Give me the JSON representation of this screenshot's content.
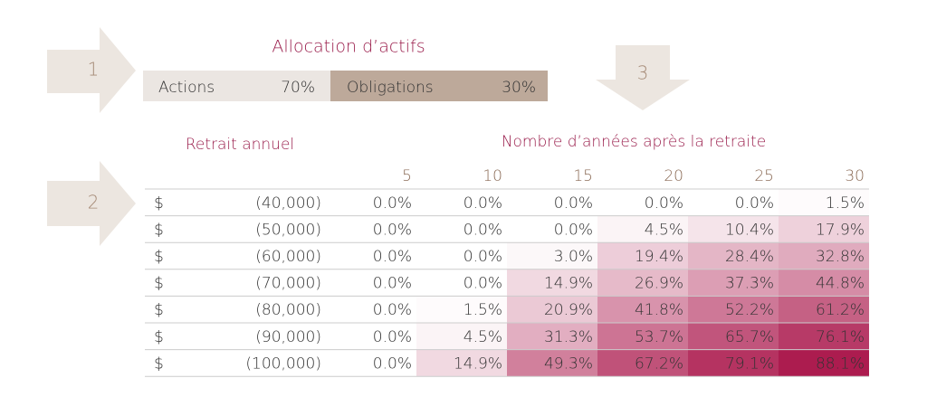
{
  "steps": [
    "1",
    "2",
    "3"
  ],
  "allocation": {
    "title": "Allocation d’actifs",
    "items": [
      {
        "label": "Actions",
        "value": "70%"
      },
      {
        "label": "Obligations",
        "value": "30%"
      }
    ]
  },
  "table": {
    "row_header": "Retrait annuel",
    "column_header": "Nombre d’années après la retraite",
    "columns": [
      "5",
      "10",
      "15",
      "20",
      "25",
      "30"
    ],
    "rows": [
      {
        "currency": "$",
        "amount": "(40,000)",
        "cells": [
          "0.0%",
          "0.0%",
          "0.0%",
          "0.0%",
          "0.0%",
          "1.5%"
        ]
      },
      {
        "currency": "$",
        "amount": "(50,000)",
        "cells": [
          "0.0%",
          "0.0%",
          "0.0%",
          "4.5%",
          "10.4%",
          "17.9%"
        ]
      },
      {
        "currency": "$",
        "amount": "(60,000)",
        "cells": [
          "0.0%",
          "0.0%",
          "3.0%",
          "19.4%",
          "28.4%",
          "32.8%"
        ]
      },
      {
        "currency": "$",
        "amount": "(70,000)",
        "cells": [
          "0.0%",
          "0.0%",
          "14.9%",
          "26.9%",
          "37.3%",
          "44.8%"
        ]
      },
      {
        "currency": "$",
        "amount": "(80,000)",
        "cells": [
          "0.0%",
          "1.5%",
          "20.9%",
          "41.8%",
          "52.2%",
          "61.2%"
        ]
      },
      {
        "currency": "$",
        "amount": "(90,000)",
        "cells": [
          "0.0%",
          "4.5%",
          "31.3%",
          "53.7%",
          "65.7%",
          "76.1%"
        ]
      },
      {
        "currency": "$",
        "amount": "(100,000)",
        "cells": [
          "0.0%",
          "14.9%",
          "49.3%",
          "67.2%",
          "79.1%",
          "88.1%"
        ]
      }
    ]
  }
}
